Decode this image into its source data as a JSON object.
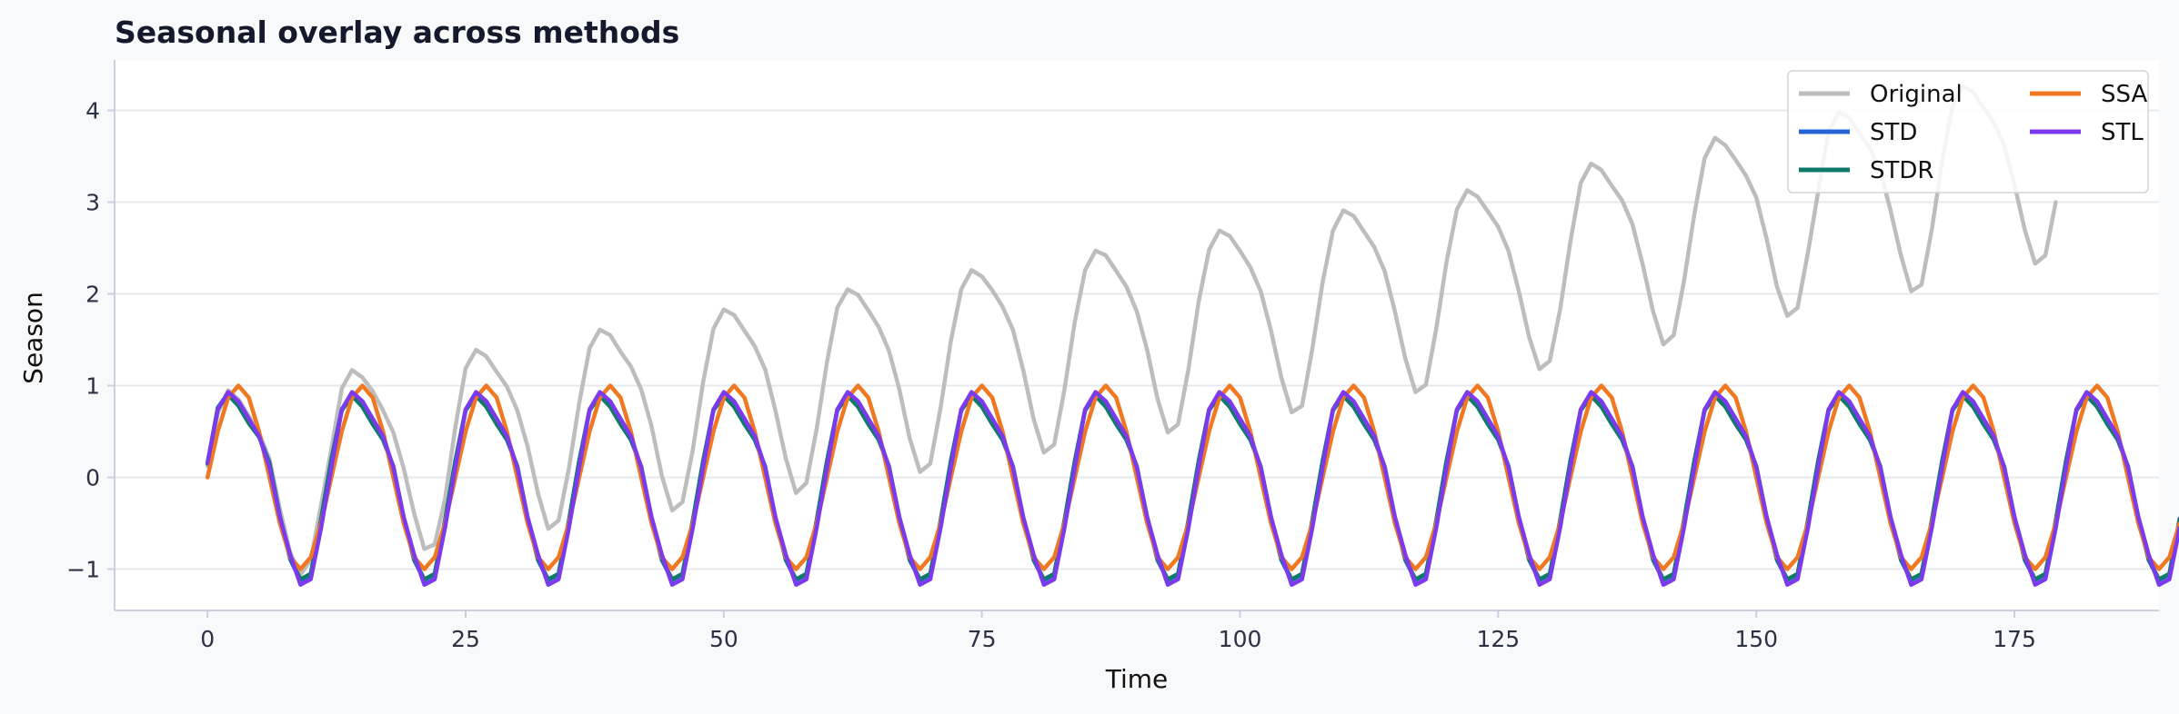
{
  "chart_data": {
    "type": "line",
    "title": "Seasonal overlay across methods",
    "xlabel": "Time",
    "ylabel": "Season",
    "xlim": [
      -9,
      189
    ],
    "ylim": [
      -1.45,
      4.55
    ],
    "xticks": [
      0,
      25,
      50,
      75,
      100,
      125,
      150,
      175
    ],
    "yticks": [
      -1,
      0,
      1,
      2,
      3,
      4
    ],
    "ytick_labels": [
      "−1",
      "0",
      "1",
      "2",
      "3",
      "4"
    ],
    "grid": "horizontal",
    "legend": {
      "position": "top-right",
      "columns": 2
    },
    "x": {
      "start": 0,
      "end": 179,
      "step": 1
    },
    "series": [
      {
        "name": "Original",
        "color": "#bdbdbd",
        "values": [
          0.12,
          0.7,
          0.95,
          0.85,
          0.67,
          0.48,
          0.2,
          -0.34,
          -0.82,
          -1.06,
          -0.9,
          -0.3,
          0.31,
          0.97,
          1.17,
          1.09,
          0.94,
          0.73,
          0.49,
          0.1,
          -0.39,
          -0.78,
          -0.73,
          -0.24,
          0.55,
          1.19,
          1.39,
          1.32,
          1.15,
          0.99,
          0.73,
          0.34,
          -0.17,
          -0.56,
          -0.47,
          0.1,
          0.81,
          1.41,
          1.61,
          1.55,
          1.37,
          1.21,
          0.96,
          0.56,
          0.02,
          -0.36,
          -0.27,
          0.3,
          1.04,
          1.62,
          1.83,
          1.77,
          1.6,
          1.43,
          1.18,
          0.73,
          0.21,
          -0.17,
          -0.06,
          0.53,
          1.26,
          1.85,
          2.05,
          1.99,
          1.82,
          1.64,
          1.38,
          0.96,
          0.43,
          0.06,
          0.15,
          0.76,
          1.49,
          2.05,
          2.26,
          2.19,
          2.04,
          1.86,
          1.61,
          1.17,
          0.64,
          0.27,
          0.36,
          0.96,
          1.7,
          2.26,
          2.47,
          2.42,
          2.25,
          2.08,
          1.81,
          1.39,
          0.86,
          0.49,
          0.58,
          1.18,
          1.92,
          2.48,
          2.69,
          2.63,
          2.47,
          2.29,
          2.03,
          1.6,
          1.09,
          0.71,
          0.78,
          1.4,
          2.13,
          2.69,
          2.91,
          2.85,
          2.68,
          2.51,
          2.25,
          1.81,
          1.3,
          0.93,
          1.01,
          1.62,
          2.35,
          2.92,
          3.13,
          3.06,
          2.9,
          2.73,
          2.47,
          2.03,
          1.53,
          1.18,
          1.27,
          1.83,
          2.57,
          3.21,
          3.42,
          3.35,
          3.18,
          3.02,
          2.76,
          2.32,
          1.81,
          1.45,
          1.55,
          2.14,
          2.87,
          3.48,
          3.7,
          3.62,
          3.46,
          3.29,
          3.05,
          2.6,
          2.08,
          1.76,
          1.85,
          2.45,
          3.12,
          3.77,
          3.98,
          3.92,
          3.75,
          3.59,
          3.34,
          2.91,
          2.42,
          2.03,
          2.1,
          2.7,
          3.45,
          4.05,
          4.26,
          4.2,
          4.03,
          3.87,
          3.62,
          3.19,
          2.7,
          2.33,
          2.42,
          3.0
        ]
      },
      {
        "name": "STD",
        "color": "#2563d6",
        "values": [
          0.15,
          0.76,
          0.92,
          0.79,
          0.6,
          0.45,
          0.16,
          -0.42,
          -0.89,
          -1.13,
          -1.07,
          -0.45,
          0.2,
          0.74,
          0.9,
          0.78,
          0.59,
          0.41,
          0.12,
          -0.44,
          -0.9,
          -1.12,
          -1.06,
          -0.47,
          0.18,
          0.74,
          0.9,
          0.78,
          0.59,
          0.41,
          0.12,
          -0.44,
          -0.9,
          -1.12,
          -1.06,
          -0.47,
          0.18,
          0.74,
          0.9,
          0.78,
          0.59,
          0.41,
          0.12,
          -0.44,
          -0.9,
          -1.12,
          -1.06,
          -0.47,
          0.18,
          0.74,
          0.9,
          0.78,
          0.59,
          0.41,
          0.12,
          -0.44,
          -0.9,
          -1.12,
          -1.06,
          -0.47,
          0.18,
          0.74,
          0.9,
          0.78,
          0.59,
          0.41,
          0.12,
          -0.44,
          -0.9,
          -1.12,
          -1.06,
          -0.47,
          0.18,
          0.74,
          0.9,
          0.78,
          0.59,
          0.41,
          0.12,
          -0.44,
          -0.9,
          -1.12,
          -1.06,
          -0.47,
          0.18,
          0.74,
          0.9,
          0.78,
          0.59,
          0.41,
          0.12,
          -0.44,
          -0.9,
          -1.12,
          -1.06,
          -0.47,
          0.18,
          0.74,
          0.9,
          0.78,
          0.59,
          0.41,
          0.12,
          -0.44,
          -0.9,
          -1.12,
          -1.06,
          -0.47,
          0.18,
          0.74,
          0.9,
          0.78,
          0.59,
          0.41,
          0.12,
          -0.44,
          -0.9,
          -1.12,
          -1.06,
          -0.47,
          0.18,
          0.74,
          0.9,
          0.78,
          0.59,
          0.41,
          0.12,
          -0.44,
          -0.9,
          -1.12,
          -1.06,
          -0.47,
          0.18,
          0.74,
          0.9,
          0.78,
          0.59,
          0.41,
          0.12,
          -0.44,
          -0.9,
          -1.12,
          -1.06,
          -0.47,
          0.18,
          0.74,
          0.9,
          0.78,
          0.59,
          0.41,
          0.12,
          -0.44,
          -0.9,
          -1.12,
          -1.06,
          -0.47,
          0.18,
          0.74,
          0.9,
          0.78,
          0.59,
          0.41,
          0.12,
          -0.44,
          -0.9,
          -1.12,
          -1.06,
          -0.47,
          0.18,
          0.74,
          0.9,
          0.78,
          0.59,
          0.41,
          0.12,
          -0.44,
          -0.9,
          -1.12,
          -1.06,
          -0.47,
          0.18,
          0.74,
          0.9,
          0.78,
          0.59,
          0.41,
          0.12,
          -0.44,
          -0.9,
          -1.12,
          -1.06,
          -0.45
        ]
      },
      {
        "name": "STDR",
        "color": "#0f7a6a",
        "values": [
          0.15,
          0.75,
          0.9,
          0.78,
          0.59,
          0.44,
          0.15,
          -0.42,
          -0.88,
          -1.11,
          -1.05,
          -0.46,
          0.18,
          0.73,
          0.89,
          0.77,
          0.58,
          0.41,
          0.12,
          -0.44,
          -0.89,
          -1.11,
          -1.05,
          -0.47,
          0.18,
          0.73,
          0.89,
          0.77,
          0.58,
          0.41,
          0.12,
          -0.44,
          -0.89,
          -1.11,
          -1.05,
          -0.47,
          0.18,
          0.73,
          0.89,
          0.77,
          0.58,
          0.41,
          0.12,
          -0.44,
          -0.89,
          -1.11,
          -1.05,
          -0.47,
          0.18,
          0.73,
          0.89,
          0.77,
          0.58,
          0.41,
          0.12,
          -0.44,
          -0.89,
          -1.11,
          -1.05,
          -0.47,
          0.18,
          0.73,
          0.89,
          0.77,
          0.58,
          0.41,
          0.12,
          -0.44,
          -0.89,
          -1.11,
          -1.05,
          -0.47,
          0.18,
          0.73,
          0.89,
          0.77,
          0.58,
          0.41,
          0.12,
          -0.44,
          -0.89,
          -1.11,
          -1.05,
          -0.47,
          0.18,
          0.73,
          0.89,
          0.77,
          0.58,
          0.41,
          0.12,
          -0.44,
          -0.89,
          -1.11,
          -1.05,
          -0.47,
          0.18,
          0.73,
          0.89,
          0.77,
          0.58,
          0.41,
          0.12,
          -0.44,
          -0.89,
          -1.11,
          -1.05,
          -0.47,
          0.18,
          0.73,
          0.89,
          0.77,
          0.58,
          0.41,
          0.12,
          -0.44,
          -0.89,
          -1.11,
          -1.05,
          -0.47,
          0.18,
          0.73,
          0.89,
          0.77,
          0.58,
          0.41,
          0.12,
          -0.44,
          -0.89,
          -1.11,
          -1.05,
          -0.47,
          0.18,
          0.73,
          0.89,
          0.77,
          0.58,
          0.41,
          0.12,
          -0.44,
          -0.89,
          -1.11,
          -1.05,
          -0.47,
          0.18,
          0.73,
          0.89,
          0.77,
          0.58,
          0.41,
          0.12,
          -0.44,
          -0.89,
          -1.11,
          -1.05,
          -0.47,
          0.18,
          0.73,
          0.89,
          0.77,
          0.58,
          0.41,
          0.12,
          -0.44,
          -0.89,
          -1.11,
          -1.05,
          -0.47,
          0.18,
          0.73,
          0.89,
          0.77,
          0.58,
          0.41,
          0.12,
          -0.44,
          -0.89,
          -1.11,
          -1.05,
          -0.47,
          0.18,
          0.73,
          0.89,
          0.77,
          0.58,
          0.41,
          0.12,
          -0.44,
          -0.89,
          -1.11,
          -1.05,
          -0.46
        ]
      },
      {
        "name": "SSA",
        "color": "#f07820",
        "values": [
          0.0,
          0.5,
          0.87,
          1.0,
          0.87,
          0.5,
          0.0,
          -0.5,
          -0.87,
          -1.0,
          -0.87,
          -0.5,
          0.0,
          0.5,
          0.87,
          1.0,
          0.87,
          0.5,
          0.0,
          -0.5,
          -0.87,
          -1.0,
          -0.87,
          -0.5,
          0.0,
          0.5,
          0.87,
          1.0,
          0.87,
          0.5,
          0.0,
          -0.5,
          -0.87,
          -1.0,
          -0.87,
          -0.5,
          0.0,
          0.5,
          0.87,
          1.0,
          0.87,
          0.5,
          0.0,
          -0.5,
          -0.87,
          -1.0,
          -0.87,
          -0.5,
          0.0,
          0.5,
          0.87,
          1.0,
          0.87,
          0.5,
          0.0,
          -0.5,
          -0.87,
          -1.0,
          -0.87,
          -0.5,
          0.0,
          0.5,
          0.87,
          1.0,
          0.87,
          0.5,
          0.0,
          -0.5,
          -0.87,
          -1.0,
          -0.87,
          -0.5,
          0.0,
          0.5,
          0.87,
          1.0,
          0.87,
          0.5,
          0.0,
          -0.5,
          -0.87,
          -1.0,
          -0.87,
          -0.5,
          0.0,
          0.5,
          0.87,
          1.0,
          0.87,
          0.5,
          0.0,
          -0.5,
          -0.87,
          -1.0,
          -0.87,
          -0.5,
          0.0,
          0.5,
          0.87,
          1.0,
          0.87,
          0.5,
          0.0,
          -0.5,
          -0.87,
          -1.0,
          -0.87,
          -0.5,
          0.0,
          0.5,
          0.87,
          1.0,
          0.87,
          0.5,
          0.0,
          -0.5,
          -0.87,
          -1.0,
          -0.87,
          -0.5,
          0.0,
          0.5,
          0.87,
          1.0,
          0.87,
          0.5,
          0.0,
          -0.5,
          -0.87,
          -1.0,
          -0.87,
          -0.5,
          0.0,
          0.5,
          0.87,
          1.0,
          0.87,
          0.5,
          0.0,
          -0.5,
          -0.87,
          -1.0,
          -0.87,
          -0.5,
          0.0,
          0.5,
          0.87,
          1.0,
          0.87,
          0.5,
          0.0,
          -0.5,
          -0.87,
          -1.0,
          -0.87,
          -0.5,
          0.0,
          0.5,
          0.87,
          1.0,
          0.87,
          0.5,
          0.0,
          -0.5,
          -0.87,
          -1.0,
          -0.87,
          -0.5,
          0.0,
          0.5,
          0.87,
          1.0,
          0.87,
          0.5,
          0.0,
          -0.5,
          -0.87,
          -1.0,
          -0.87,
          -0.5,
          0.0,
          0.5,
          0.87,
          1.0,
          0.87,
          0.5,
          0.0,
          -0.5,
          -0.87,
          -1.0,
          -0.87,
          -0.5
        ]
      },
      {
        "name": "STL",
        "color": "#7c3aed",
        "values": [
          0.16,
          0.74,
          0.93,
          0.83,
          0.64,
          0.45,
          0.11,
          -0.43,
          -0.84,
          -1.17,
          -1.11,
          -0.55,
          0.11,
          0.74,
          0.93,
          0.83,
          0.64,
          0.45,
          0.11,
          -0.43,
          -0.84,
          -1.17,
          -1.11,
          -0.55,
          0.11,
          0.74,
          0.93,
          0.83,
          0.64,
          0.45,
          0.11,
          -0.43,
          -0.84,
          -1.17,
          -1.11,
          -0.55,
          0.11,
          0.74,
          0.93,
          0.83,
          0.64,
          0.45,
          0.11,
          -0.43,
          -0.84,
          -1.17,
          -1.11,
          -0.55,
          0.11,
          0.74,
          0.93,
          0.83,
          0.64,
          0.45,
          0.11,
          -0.43,
          -0.84,
          -1.17,
          -1.11,
          -0.55,
          0.11,
          0.74,
          0.93,
          0.83,
          0.64,
          0.45,
          0.11,
          -0.43,
          -0.84,
          -1.17,
          -1.11,
          -0.55,
          0.11,
          0.74,
          0.93,
          0.83,
          0.64,
          0.45,
          0.11,
          -0.43,
          -0.84,
          -1.17,
          -1.11,
          -0.55,
          0.11,
          0.74,
          0.93,
          0.83,
          0.64,
          0.45,
          0.11,
          -0.43,
          -0.84,
          -1.17,
          -1.11,
          -0.55,
          0.11,
          0.74,
          0.93,
          0.83,
          0.64,
          0.45,
          0.11,
          -0.43,
          -0.84,
          -1.17,
          -1.11,
          -0.55,
          0.11,
          0.74,
          0.93,
          0.83,
          0.64,
          0.45,
          0.11,
          -0.43,
          -0.84,
          -1.17,
          -1.11,
          -0.55,
          0.11,
          0.74,
          0.93,
          0.83,
          0.64,
          0.45,
          0.11,
          -0.43,
          -0.84,
          -1.17,
          -1.11,
          -0.55,
          0.11,
          0.74,
          0.93,
          0.83,
          0.64,
          0.45,
          0.11,
          -0.43,
          -0.84,
          -1.17,
          -1.11,
          -0.55,
          0.11,
          0.74,
          0.93,
          0.83,
          0.64,
          0.45,
          0.11,
          -0.43,
          -0.84,
          -1.17,
          -1.11,
          -0.55,
          0.11,
          0.74,
          0.93,
          0.83,
          0.64,
          0.45,
          0.11,
          -0.43,
          -0.84,
          -1.17,
          -1.11,
          -0.55,
          0.11,
          0.74,
          0.93,
          0.83,
          0.64,
          0.45,
          0.11,
          -0.43,
          -0.84,
          -1.17,
          -1.11,
          -0.55,
          0.11,
          0.74,
          0.93,
          0.83,
          0.64,
          0.45,
          0.11,
          -0.43,
          -0.84,
          -1.17,
          -1.11,
          -0.55
        ]
      }
    ]
  }
}
